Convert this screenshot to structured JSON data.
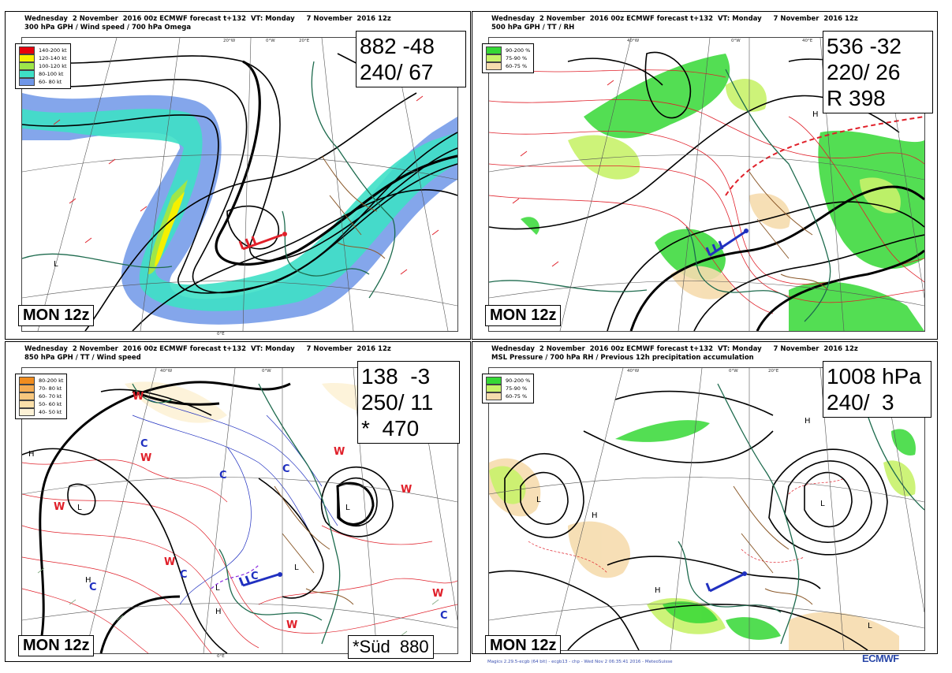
{
  "panels": [
    {
      "header_line1": "Wednesday  2 November  2016 00z ECMWF forecast t+132  VT: Monday     7 November  2016 12z",
      "header_line2": "300 hPa GPH / Wind speed / 700 hPa Omega",
      "legend": [
        {
          "label": "140-200 kt",
          "color": "#e8000b"
        },
        {
          "label": "120-140 kt",
          "color": "#f5f000"
        },
        {
          "label": "100-120 kt",
          "color": "#9ee64a"
        },
        {
          "label": "80-100 kt",
          "color": "#3ee0c6"
        },
        {
          "label": "60- 80 kt",
          "color": "#6f96e8"
        }
      ],
      "info": [
        "882 -48",
        "240/ 67"
      ],
      "mon": "MON 12z"
    },
    {
      "header_line1": "Wednesday  2 November  2016 00z ECMWF forecast t+132  VT: Monday     7 November  2016 12z",
      "header_line2": "500 hPa GPH / TT / RH",
      "legend": [
        {
          "label": "90-200 %",
          "color": "#35d835"
        },
        {
          "label": "75-90 %",
          "color": "#c8f26a"
        },
        {
          "label": "60-75 %",
          "color": "#f6dcae"
        }
      ],
      "info": [
        "536 -32",
        "220/ 26",
        "R 398"
      ],
      "mon": "MON 12z"
    },
    {
      "header_line1": "Wednesday  2 November  2016 00z ECMWF forecast t+132  VT: Monday     7 November  2016 12z",
      "header_line2": "850 hPa GPH / TT / Wind speed",
      "legend": [
        {
          "label": "80-200 kt",
          "color": "#f08c1e"
        },
        {
          "label": "70- 80 kt",
          "color": "#f5ac52"
        },
        {
          "label": "60- 70 kt",
          "color": "#f8c77e"
        },
        {
          "label": "50- 60 kt",
          "color": "#fbe0aa"
        },
        {
          "label": "40- 50 kt",
          "color": "#fdf2d6"
        }
      ],
      "info": [
        "138  -3",
        "250/ 11",
        "*  470"
      ],
      "mon": "MON 12z",
      "extra": "*Süd  880"
    },
    {
      "header_line1": "Wednesday  2 November  2016 00z ECMWF forecast t+132  VT: Monday     7 November  2016 12z",
      "header_line2": "MSL Pressure / 700 hPa RH / Previous 12h precipitation accumulation",
      "legend": [
        {
          "label": "90-200 %",
          "color": "#35d835"
        },
        {
          "label": "75-90 %",
          "color": "#c8f26a"
        },
        {
          "label": "60-75 %",
          "color": "#f6dcae"
        }
      ],
      "info": [
        "1008 hPa",
        "240/  3"
      ],
      "mon": "MON 12z"
    }
  ],
  "ticks": {
    "w40": "40°W",
    "w20": "20°W",
    "zero": "0°W",
    "e20": "20°E",
    "e40": "40°E",
    "e0": "0°E"
  },
  "footer": "Magics 2.29.5-ecgb (64 bit) - ecgb13 - chp - Wed Nov  2 06:35:41 2016 - MeteoSuisse",
  "logo": "ECMWF",
  "colors": {
    "contour": "#000000",
    "coast": "#1e6b4e",
    "border": "#8b5a2b",
    "temp": "#e0202a",
    "cold": "#2030c0"
  }
}
